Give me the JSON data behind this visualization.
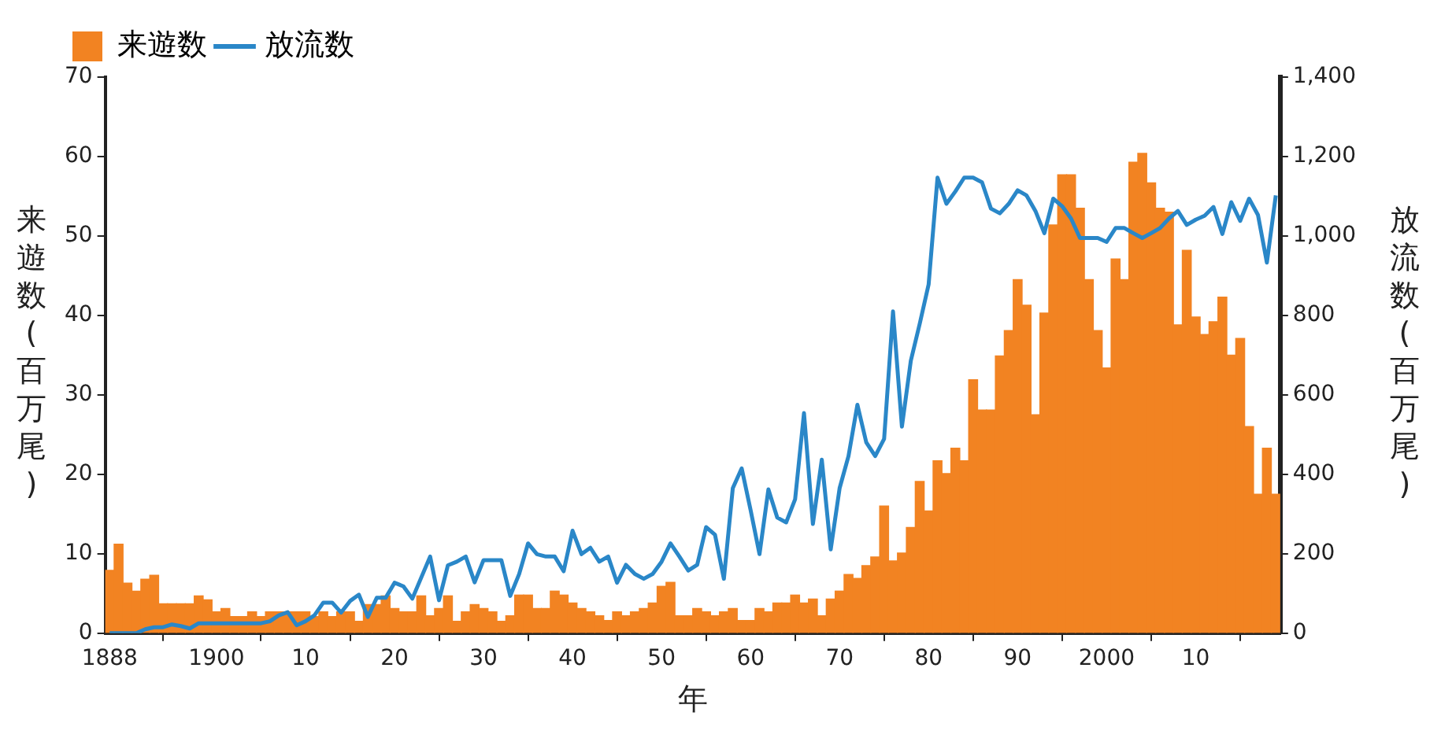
{
  "chart_data": {
    "type": "bar",
    "xlabel": "年",
    "ylabel": "来遊数(百万尾)",
    "y2label": "放流数(百万尾)",
    "legend": "top left",
    "grid": false,
    "marker": "none",
    "x": [
      1888,
      1889,
      1890,
      1891,
      1892,
      1893,
      1894,
      1895,
      1896,
      1897,
      1898,
      1899,
      1900,
      1901,
      1902,
      1903,
      1904,
      1905,
      1906,
      1907,
      1908,
      1909,
      1910,
      1911,
      1912,
      1913,
      1914,
      1915,
      1916,
      1917,
      1918,
      1919,
      1920,
      1921,
      1922,
      1923,
      1924,
      1925,
      1926,
      1927,
      1928,
      1929,
      1930,
      1931,
      1932,
      1933,
      1934,
      1935,
      1936,
      1937,
      1938,
      1939,
      1940,
      1941,
      1942,
      1943,
      1944,
      1945,
      1946,
      1947,
      1948,
      1949,
      1950,
      1951,
      1952,
      1953,
      1954,
      1955,
      1956,
      1957,
      1958,
      1959,
      1960,
      1961,
      1962,
      1963,
      1964,
      1965,
      1966,
      1967,
      1968,
      1969,
      1970,
      1971,
      1972,
      1973,
      1974,
      1975,
      1976,
      1977,
      1978,
      1979,
      1980,
      1981,
      1982,
      1983,
      1984,
      1985,
      1986,
      1987,
      1988,
      1989,
      1990,
      1991,
      1992,
      1993,
      1994,
      1995,
      1996,
      1997,
      1998,
      1999,
      2000,
      2001,
      2002,
      2003,
      2004,
      2005,
      2006,
      2007,
      2008,
      2009,
      2010,
      2011,
      2012,
      2013,
      2014,
      2015,
      2016,
      2017,
      2018,
      2019
    ],
    "xlim": [
      1887.5,
      2019.5
    ],
    "xticks": [
      1888,
      1900,
      {
        "value": 1910,
        "label": "10"
      },
      {
        "value": 1920,
        "label": "20"
      },
      {
        "value": 1930,
        "label": "30"
      },
      {
        "value": 1940,
        "label": "40"
      },
      {
        "value": 1950,
        "label": "50"
      },
      {
        "value": 1960,
        "label": "60"
      },
      {
        "value": 1970,
        "label": "70"
      },
      {
        "value": 1980,
        "label": "80"
      },
      {
        "value": 1990,
        "label": "90"
      },
      2000,
      {
        "value": 2010,
        "label": "10"
      }
    ],
    "ylim": [
      0,
      70
    ],
    "yticks": [
      0,
      10,
      20,
      30,
      40,
      50,
      60,
      70
    ],
    "y2lim": [
      0,
      1400
    ],
    "y2ticks": [
      0,
      200,
      400,
      600,
      800,
      {
        "value": 1000,
        "label": "1,000"
      },
      {
        "value": 1200,
        "label": "1,200"
      },
      {
        "value": 1400,
        "label": "1,400"
      }
    ],
    "series": [
      {
        "name": "来遊数",
        "color": "#f28322",
        "values": [
          7.9,
          11.2,
          6.3,
          5.3,
          6.8,
          7.3,
          3.7,
          3.7,
          3.7,
          3.7,
          4.7,
          4.2,
          2.7,
          3.1,
          2.1,
          2.1,
          2.7,
          2.1,
          2.7,
          2.7,
          2.7,
          2.7,
          2.7,
          2.1,
          2.7,
          2.1,
          2.7,
          2.7,
          1.5,
          3.6,
          3.6,
          4.7,
          3.1,
          2.7,
          2.7,
          4.7,
          2.2,
          3.1,
          4.7,
          1.5,
          2.7,
          3.6,
          3.1,
          2.7,
          1.5,
          2.2,
          4.8,
          4.8,
          3.1,
          3.1,
          5.3,
          4.8,
          3.8,
          3.1,
          2.7,
          2.2,
          1.6,
          2.7,
          2.2,
          2.7,
          3.1,
          3.8,
          5.9,
          6.4,
          2.2,
          2.2,
          3.1,
          2.7,
          2.2,
          2.7,
          3.1,
          1.6,
          1.6,
          3.1,
          2.7,
          3.8,
          3.8,
          4.8,
          3.8,
          4.3,
          2.2,
          4.3,
          5.3,
          7.4,
          6.9,
          8.5,
          9.6,
          16.0,
          9.1,
          10.1,
          13.3,
          19.1,
          15.4,
          21.7,
          20.1,
          23.3,
          21.7,
          31.9,
          28.1,
          28.1,
          34.9,
          38.1,
          44.5,
          41.3,
          27.5,
          40.3,
          51.4,
          57.7,
          57.7,
          53.5,
          44.5,
          38.1,
          33.4,
          47.1,
          44.5,
          59.3,
          60.4,
          56.7,
          53.5,
          53.0,
          38.8,
          48.2,
          39.8,
          37.6,
          39.2,
          42.3,
          35.0,
          37.1,
          26.0,
          17.5,
          23.3,
          17.5
        ]
      },
      {
        "name": "放流数",
        "type": "line",
        "axis": "y2",
        "color": "#2a87c8",
        "values": [
          0,
          0,
          0,
          0,
          10,
          15,
          15,
          22,
          18,
          12,
          25,
          25,
          25,
          25,
          25,
          25,
          25,
          25,
          30,
          45,
          53,
          20,
          30,
          45,
          77,
          77,
          52,
          81,
          97,
          41,
          89,
          89,
          127,
          118,
          87,
          140,
          193,
          83,
          171,
          180,
          193,
          128,
          184,
          184,
          184,
          94,
          149,
          226,
          199,
          193,
          193,
          156,
          258,
          199,
          215,
          180,
          193,
          127,
          172,
          149,
          137,
          149,
          180,
          226,
          193,
          158,
          172,
          267,
          248,
          137,
          365,
          415,
          310,
          199,
          362,
          291,
          279,
          337,
          554,
          275,
          437,
          211,
          365,
          446,
          575,
          480,
          446,
          489,
          810,
          520,
          686,
          779,
          878,
          1147,
          1081,
          1112,
          1147,
          1147,
          1135,
          1069,
          1057,
          1081,
          1115,
          1102,
          1063,
          1007,
          1094,
          1075,
          1044,
          995,
          995,
          995,
          985,
          1020,
          1020,
          1007,
          995,
          1007,
          1020,
          1044,
          1063,
          1028,
          1041,
          1051,
          1073,
          1005,
          1085,
          1038,
          1094,
          1053,
          933,
          1102
        ]
      }
    ]
  }
}
